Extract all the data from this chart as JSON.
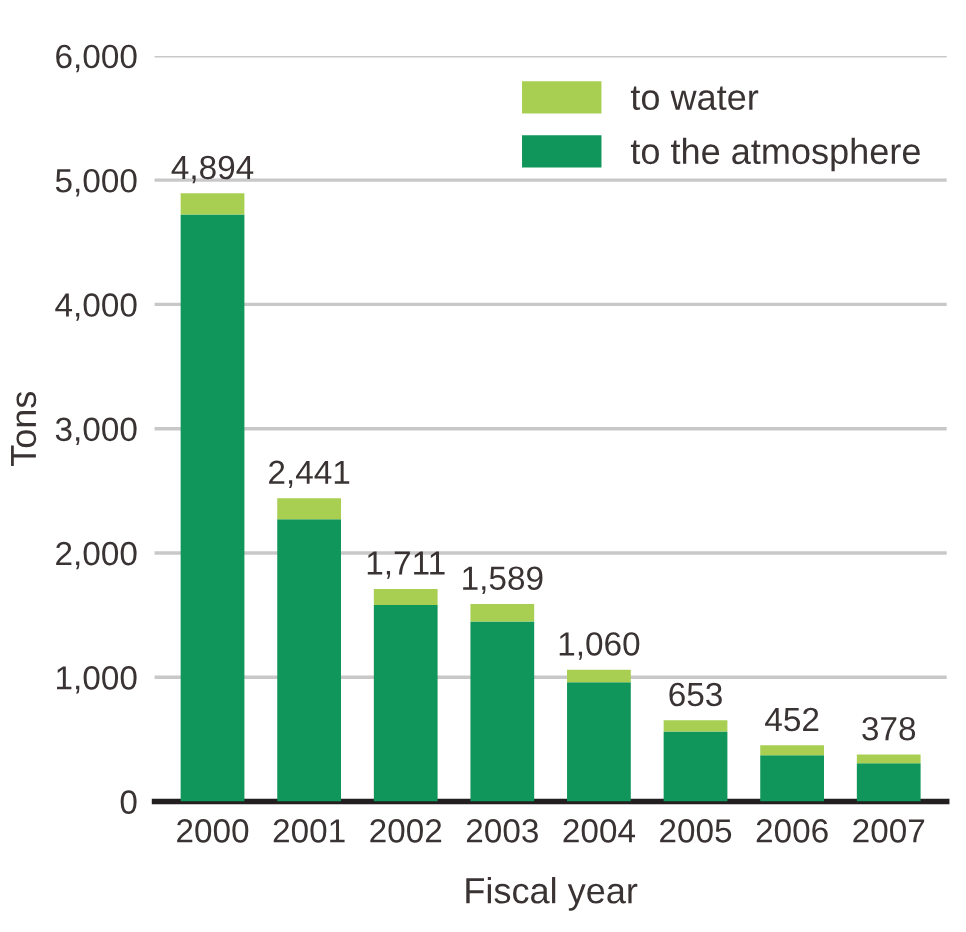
{
  "chart_data": {
    "type": "bar",
    "stacked": true,
    "xlabel": "Fiscal year",
    "ylabel": "Tons",
    "categories": [
      "2000",
      "2001",
      "2002",
      "2003",
      "2004",
      "2005",
      "2006",
      "2007"
    ],
    "series": [
      {
        "name": "to the atmosphere",
        "color": "#10965a",
        "values": [
          4724,
          2271,
          1581,
          1449,
          960,
          563,
          372,
          308
        ]
      },
      {
        "name": "to water",
        "color": "#a8cf52",
        "values": [
          170,
          170,
          130,
          140,
          100,
          90,
          80,
          70
        ]
      }
    ],
    "totals": [
      "4,894",
      "2,441",
      "1,711",
      "1,589",
      "1,060",
      "653",
      "452",
      "378"
    ],
    "ylim": [
      0,
      6000
    ],
    "yticks": [
      {
        "value": 0,
        "label": "0"
      },
      {
        "value": 1000,
        "label": "1,000"
      },
      {
        "value": 2000,
        "label": "2,000"
      },
      {
        "value": 3000,
        "label": "3,000"
      },
      {
        "value": 4000,
        "label": "4,000"
      },
      {
        "value": 5000,
        "label": "5,000"
      },
      {
        "value": 6000,
        "label": "6,000"
      }
    ],
    "grid": "y",
    "legend": "top right"
  }
}
